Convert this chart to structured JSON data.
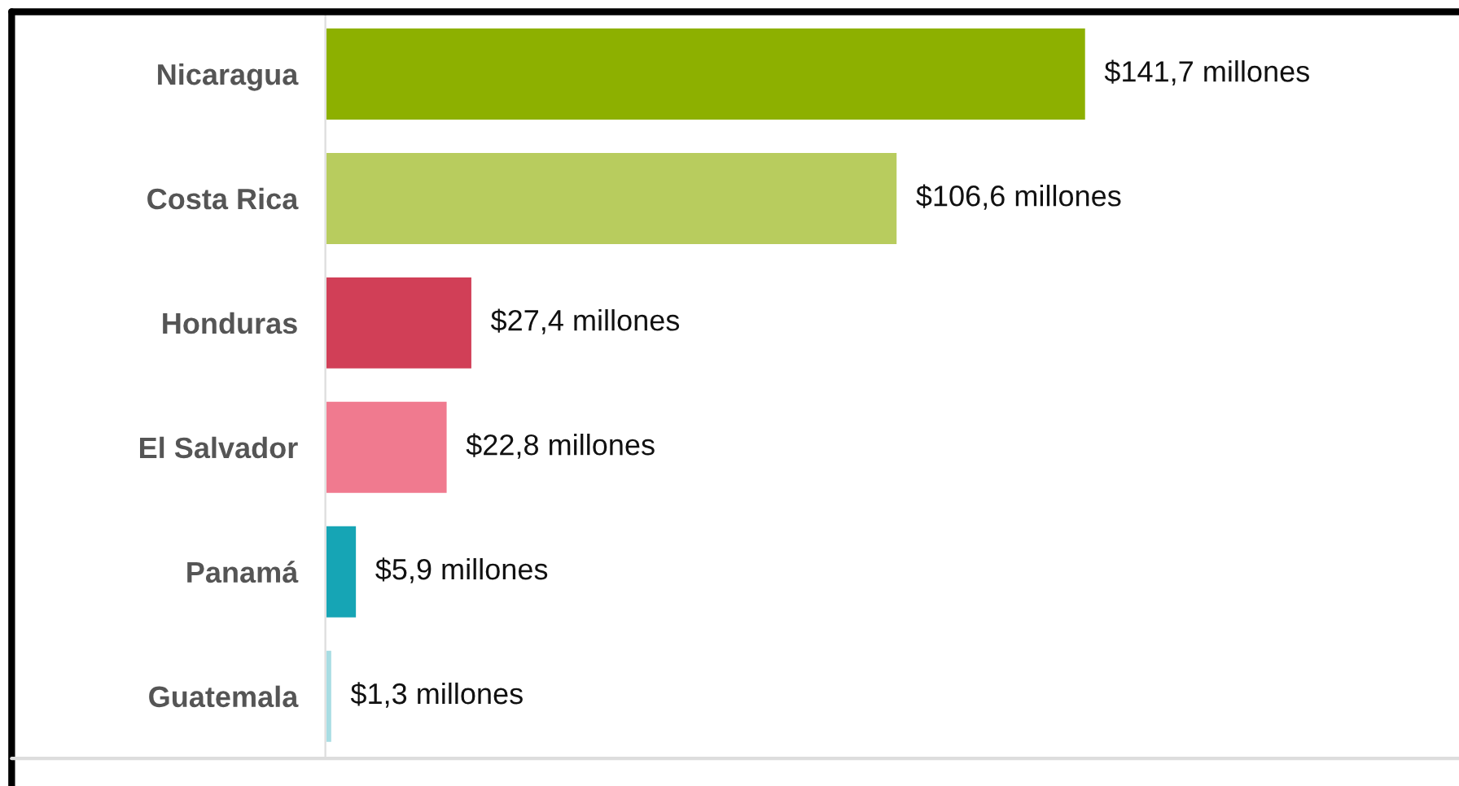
{
  "chart_data": {
    "type": "bar",
    "orientation": "horizontal",
    "categories": [
      "Nicaragua",
      "Costa Rica",
      "Honduras",
      "El Salvador",
      "Panamá",
      "Guatemala"
    ],
    "values": [
      141.7,
      106.6,
      27.4,
      22.8,
      5.9,
      1.3
    ],
    "colors": [
      "#8db000",
      "#b8cc5e",
      "#d13f57",
      "#f07a8f",
      "#16a5b5",
      "#a8dde3"
    ],
    "value_labels": [
      "$141,7 millones",
      "$106,6 millones",
      "$27,4 millones",
      "$22,8 millones",
      "$5,9 millones",
      "$1,3 millones"
    ],
    "grid": false,
    "legend": false
  }
}
